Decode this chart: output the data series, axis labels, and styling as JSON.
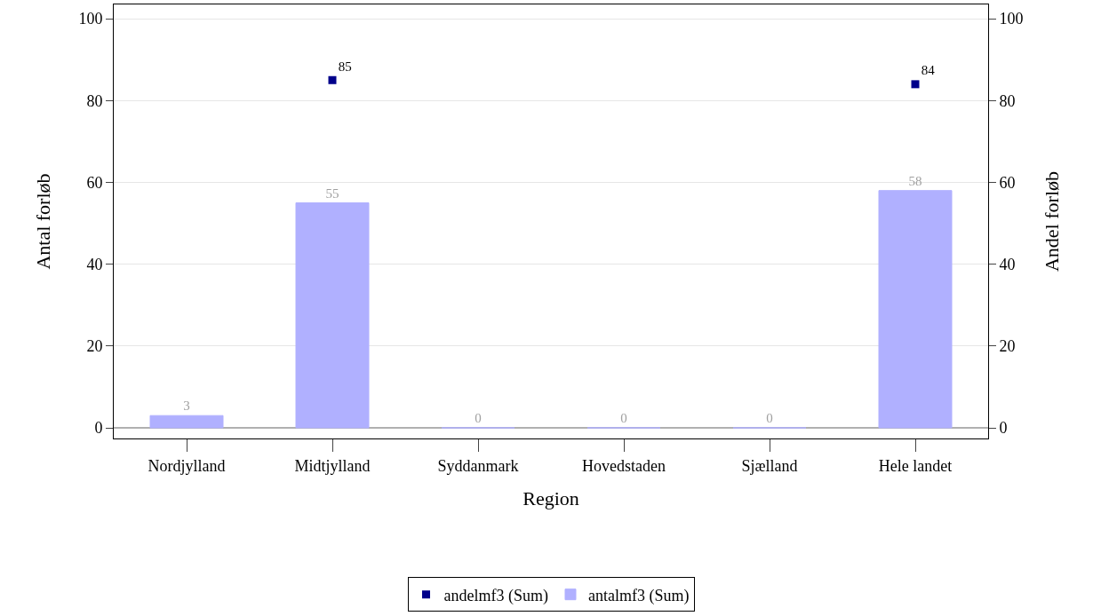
{
  "chart_data": {
    "type": "bar",
    "xlabel": "Region",
    "ylabel": "Antal forløb",
    "y2label": "Andel forløb",
    "categories": [
      "Nordjylland",
      "Midtjylland",
      "Syddanmark",
      "Hovedstaden",
      "Sjælland",
      "Hele landet"
    ],
    "series": [
      {
        "name": "andelmf3 (Sum)",
        "type": "scatter",
        "axis": "y2",
        "color": "#00008b",
        "values": [
          null,
          85,
          null,
          null,
          null,
          84
        ]
      },
      {
        "name": "antalmf3 (Sum)",
        "color": "#b0b0ff",
        "values": [
          3,
          55,
          0,
          0,
          0,
          58
        ]
      }
    ],
    "ylim": [
      -2.6,
      103.5
    ],
    "yticks": [
      0,
      20,
      40,
      60,
      80,
      100
    ],
    "y2lim": [
      -2.6,
      103.5
    ],
    "y2ticks": [
      0,
      20,
      40,
      60,
      80,
      100
    ],
    "grid": "y",
    "legend": "bottom",
    "marker": "square",
    "data_labels": true
  }
}
